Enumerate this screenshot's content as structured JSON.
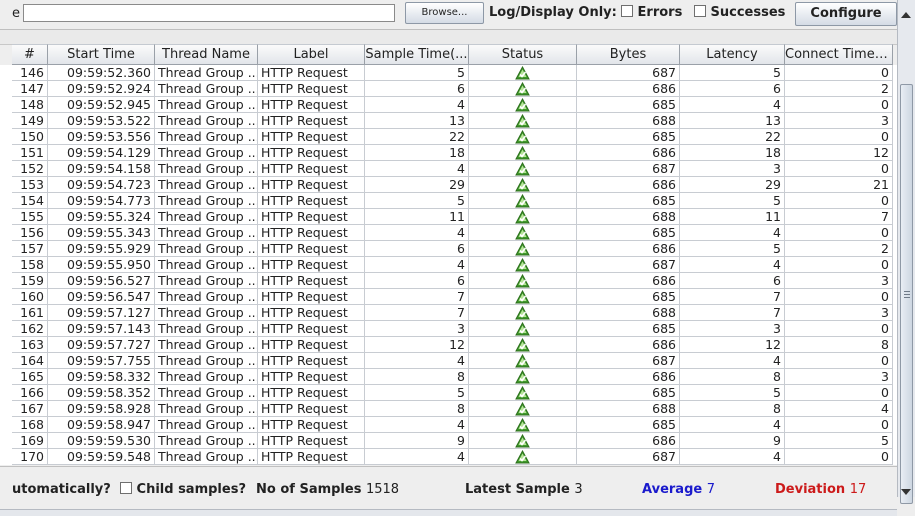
{
  "toolbar": {
    "filename_label_fragment": "e",
    "filename_value": "",
    "browse_label": "Browse...",
    "log_display_only_label": "Log/Display Only:",
    "errors_label": "Errors",
    "successes_label": "Successes",
    "configure_label": "Configure"
  },
  "table": {
    "columns": [
      "#",
      "Start Time",
      "Thread Name",
      "Label",
      "Sample Time(...",
      "Status",
      "Bytes",
      "Latency",
      "Connect Time(..."
    ],
    "rows": [
      {
        "n": "146",
        "start": "09:59:52.360",
        "thread": "Thread Group ...",
        "label": "HTTP Request",
        "sample": "5",
        "status": "success",
        "bytes": "687",
        "latency": "5",
        "connect": "0"
      },
      {
        "n": "147",
        "start": "09:59:52.924",
        "thread": "Thread Group ...",
        "label": "HTTP Request",
        "sample": "6",
        "status": "success",
        "bytes": "686",
        "latency": "6",
        "connect": "2"
      },
      {
        "n": "148",
        "start": "09:59:52.945",
        "thread": "Thread Group ...",
        "label": "HTTP Request",
        "sample": "4",
        "status": "success",
        "bytes": "685",
        "latency": "4",
        "connect": "0"
      },
      {
        "n": "149",
        "start": "09:59:53.522",
        "thread": "Thread Group ...",
        "label": "HTTP Request",
        "sample": "13",
        "status": "success",
        "bytes": "688",
        "latency": "13",
        "connect": "3"
      },
      {
        "n": "150",
        "start": "09:59:53.556",
        "thread": "Thread Group ...",
        "label": "HTTP Request",
        "sample": "22",
        "status": "success",
        "bytes": "685",
        "latency": "22",
        "connect": "0"
      },
      {
        "n": "151",
        "start": "09:59:54.129",
        "thread": "Thread Group ...",
        "label": "HTTP Request",
        "sample": "18",
        "status": "success",
        "bytes": "686",
        "latency": "18",
        "connect": "12"
      },
      {
        "n": "152",
        "start": "09:59:54.158",
        "thread": "Thread Group ...",
        "label": "HTTP Request",
        "sample": "4",
        "status": "success",
        "bytes": "687",
        "latency": "3",
        "connect": "0"
      },
      {
        "n": "153",
        "start": "09:59:54.723",
        "thread": "Thread Group ...",
        "label": "HTTP Request",
        "sample": "29",
        "status": "success",
        "bytes": "686",
        "latency": "29",
        "connect": "21"
      },
      {
        "n": "154",
        "start": "09:59:54.773",
        "thread": "Thread Group ...",
        "label": "HTTP Request",
        "sample": "5",
        "status": "success",
        "bytes": "685",
        "latency": "5",
        "connect": "0"
      },
      {
        "n": "155",
        "start": "09:59:55.324",
        "thread": "Thread Group ...",
        "label": "HTTP Request",
        "sample": "11",
        "status": "success",
        "bytes": "688",
        "latency": "11",
        "connect": "7"
      },
      {
        "n": "156",
        "start": "09:59:55.343",
        "thread": "Thread Group ...",
        "label": "HTTP Request",
        "sample": "4",
        "status": "success",
        "bytes": "685",
        "latency": "4",
        "connect": "0"
      },
      {
        "n": "157",
        "start": "09:59:55.929",
        "thread": "Thread Group ...",
        "label": "HTTP Request",
        "sample": "6",
        "status": "success",
        "bytes": "686",
        "latency": "5",
        "connect": "2"
      },
      {
        "n": "158",
        "start": "09:59:55.950",
        "thread": "Thread Group ...",
        "label": "HTTP Request",
        "sample": "4",
        "status": "success",
        "bytes": "687",
        "latency": "4",
        "connect": "0"
      },
      {
        "n": "159",
        "start": "09:59:56.527",
        "thread": "Thread Group ...",
        "label": "HTTP Request",
        "sample": "6",
        "status": "success",
        "bytes": "686",
        "latency": "6",
        "connect": "3"
      },
      {
        "n": "160",
        "start": "09:59:56.547",
        "thread": "Thread Group ...",
        "label": "HTTP Request",
        "sample": "7",
        "status": "success",
        "bytes": "685",
        "latency": "7",
        "connect": "0"
      },
      {
        "n": "161",
        "start": "09:59:57.127",
        "thread": "Thread Group ...",
        "label": "HTTP Request",
        "sample": "7",
        "status": "success",
        "bytes": "688",
        "latency": "7",
        "connect": "3"
      },
      {
        "n": "162",
        "start": "09:59:57.143",
        "thread": "Thread Group ...",
        "label": "HTTP Request",
        "sample": "3",
        "status": "success",
        "bytes": "685",
        "latency": "3",
        "connect": "0"
      },
      {
        "n": "163",
        "start": "09:59:57.727",
        "thread": "Thread Group ...",
        "label": "HTTP Request",
        "sample": "12",
        "status": "success",
        "bytes": "686",
        "latency": "12",
        "connect": "8"
      },
      {
        "n": "164",
        "start": "09:59:57.755",
        "thread": "Thread Group ...",
        "label": "HTTP Request",
        "sample": "4",
        "status": "success",
        "bytes": "687",
        "latency": "4",
        "connect": "0"
      },
      {
        "n": "165",
        "start": "09:59:58.332",
        "thread": "Thread Group ...",
        "label": "HTTP Request",
        "sample": "8",
        "status": "success",
        "bytes": "686",
        "latency": "8",
        "connect": "3"
      },
      {
        "n": "166",
        "start": "09:59:58.352",
        "thread": "Thread Group ...",
        "label": "HTTP Request",
        "sample": "5",
        "status": "success",
        "bytes": "685",
        "latency": "5",
        "connect": "0"
      },
      {
        "n": "167",
        "start": "09:59:58.928",
        "thread": "Thread Group ...",
        "label": "HTTP Request",
        "sample": "8",
        "status": "success",
        "bytes": "688",
        "latency": "8",
        "connect": "4"
      },
      {
        "n": "168",
        "start": "09:59:58.947",
        "thread": "Thread Group ...",
        "label": "HTTP Request",
        "sample": "4",
        "status": "success",
        "bytes": "685",
        "latency": "4",
        "connect": "0"
      },
      {
        "n": "169",
        "start": "09:59:59.530",
        "thread": "Thread Group ...",
        "label": "HTTP Request",
        "sample": "9",
        "status": "success",
        "bytes": "686",
        "latency": "9",
        "connect": "5"
      },
      {
        "n": "170",
        "start": "09:59:59.548",
        "thread": "Thread Group ...",
        "label": "HTTP Request",
        "sample": "4",
        "status": "success",
        "bytes": "687",
        "latency": "4",
        "connect": "0"
      }
    ]
  },
  "statusbar": {
    "automatically_label": "utomatically?",
    "child_samples_label": "Child samples?",
    "no_of_samples_label": "No of Samples",
    "no_of_samples_value": "1518",
    "latest_sample_label": "Latest Sample",
    "latest_sample_value": "3",
    "average_label": "Average",
    "average_value": "7",
    "deviation_label": "Deviation",
    "deviation_value": "17"
  },
  "colors": {
    "average": "#1a1acc",
    "deviation": "#cc1a1a",
    "status_success": "#3f9a2a"
  },
  "icons": {
    "status_success": "success-triangle-icon"
  }
}
